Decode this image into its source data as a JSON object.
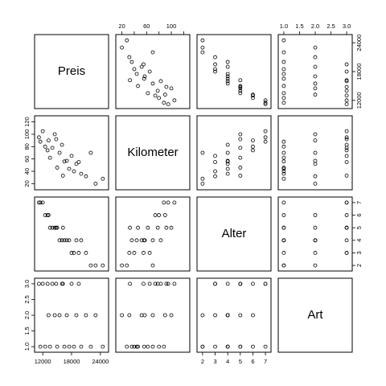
{
  "chart_data": {
    "type": "scatter",
    "kind": "scatterplot-matrix",
    "title": "",
    "variables": [
      {
        "name": "Preis",
        "range": [
          10800,
          25200
        ],
        "ticks": [
          12000,
          18000,
          24000
        ],
        "tick_labels": [
          "12000",
          "18000",
          "24000"
        ]
      },
      {
        "name": "Kilometer",
        "range": [
          14,
          126
        ],
        "ticks": [
          20,
          40,
          60,
          80,
          100,
          120
        ],
        "tick_labels": [
          "20",
          "40",
          "60",
          "80",
          "100",
          "120"
        ]
      },
      {
        "name": "Alter",
        "range": [
          1.75,
          7.25
        ],
        "ticks": [
          2,
          3,
          4,
          5,
          6,
          7
        ],
        "tick_labels": [
          "2",
          "3",
          "4",
          "5",
          "6",
          "7"
        ]
      },
      {
        "name": "Art",
        "range": [
          0.9,
          3.1
        ],
        "ticks": [
          1.0,
          1.5,
          2.0,
          2.5,
          3.0
        ],
        "tick_labels": [
          "1.0",
          "1.5",
          "2.0",
          "2.5",
          "3.0"
        ]
      }
    ],
    "observations": [
      [
        11200,
        95,
        7,
        3
      ],
      [
        11500,
        88,
        7,
        1
      ],
      [
        12000,
        105,
        7,
        3
      ],
      [
        12500,
        80,
        6,
        1
      ],
      [
        13000,
        74,
        6,
        3
      ],
      [
        13200,
        90,
        6,
        2
      ],
      [
        13500,
        62,
        5,
        1
      ],
      [
        14000,
        78,
        5,
        3
      ],
      [
        14500,
        100,
        5,
        2
      ],
      [
        14800,
        92,
        5,
        3
      ],
      [
        15000,
        46,
        5,
        1
      ],
      [
        15500,
        70,
        4,
        2
      ],
      [
        16000,
        83,
        4,
        3
      ],
      [
        16200,
        33,
        5,
        3
      ],
      [
        16500,
        56,
        4,
        1
      ],
      [
        17000,
        57,
        4,
        2
      ],
      [
        17500,
        44,
        4,
        1
      ],
      [
        18000,
        65,
        3,
        3
      ],
      [
        18500,
        40,
        3,
        1
      ],
      [
        19000,
        52,
        4,
        2
      ],
      [
        19500,
        55,
        3,
        3
      ],
      [
        20000,
        36,
        4,
        1
      ],
      [
        21000,
        32,
        3,
        2
      ],
      [
        22000,
        70,
        2,
        1
      ],
      [
        23000,
        20,
        2,
        2
      ],
      [
        24500,
        28,
        2,
        1
      ]
    ]
  }
}
